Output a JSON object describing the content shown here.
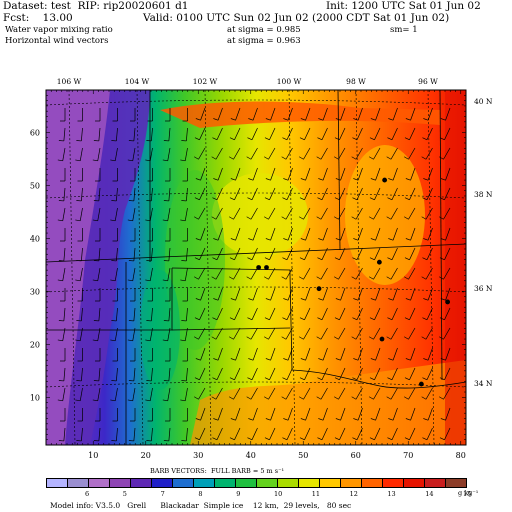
{
  "header": {
    "dataset_line": "Dataset: test  RIP: rip20020601 d1",
    "init_line": "Init: 1200 UTC Sat 01 Jun 02",
    "fcst_line": "Fcst:    13.00",
    "valid_line": "Valid: 0100 UTC Sun 02 Jun 02 (2000 CDT Sat 01 Jun 02)",
    "field1_line": "Water vapor mixing ratio",
    "sigma1_line": "at sigma = 0.985",
    "sm_line": "sm= 1",
    "field2_line": "Horizontal wind vectors",
    "sigma2_line": "at sigma = 0.963"
  },
  "map": {
    "lon_labels": [
      "106 W",
      "104 W",
      "102 W",
      "100 W",
      "98 W",
      "96 W"
    ],
    "lat_labels": [
      "40 N",
      "38 N",
      "36 N",
      "34 N"
    ],
    "grid_x_labels": [
      "10",
      "20",
      "30",
      "40",
      "50",
      "60",
      "70",
      "80"
    ],
    "grid_y_labels": [
      "10",
      "20",
      "30",
      "40",
      "50",
      "60"
    ],
    "cities": [
      {
        "x": 65.5,
        "y": 51
      },
      {
        "x": 41.5,
        "y": 34.5
      },
      {
        "x": 43,
        "y": 34.5
      },
      {
        "x": 64.5,
        "y": 35.5
      },
      {
        "x": 53,
        "y": 30.5
      },
      {
        "x": 77.5,
        "y": 28
      },
      {
        "x": 65,
        "y": 21
      },
      {
        "x": 72.5,
        "y": 12.5
      }
    ]
  },
  "legend": {
    "barb_text": "BARB VECTORS:  FULL BARB = 5 m s⁻¹",
    "colorbar_labels": [
      "6",
      "5",
      "7",
      "8",
      "9",
      "10",
      "11",
      "12",
      "13",
      "14",
      "15"
    ],
    "units": "g kg⁻¹",
    "colors": [
      "#b4b4ff",
      "#9a8ed0",
      "#b070c8",
      "#8e44b4",
      "#5e28b4",
      "#2020c8",
      "#1e6ed0",
      "#00a0b8",
      "#00b46e",
      "#20c040",
      "#64d21e",
      "#aadc00",
      "#e6e600",
      "#ffc800",
      "#ff9600",
      "#ff6400",
      "#ff2a00",
      "#e61400",
      "#c81e1e",
      "#8c3c28"
    ]
  },
  "footer": {
    "model_info": "Model info: V3.5.0   Grell      Blackadar  Simple ice    12 km,  29 levels,   80 sec"
  }
}
